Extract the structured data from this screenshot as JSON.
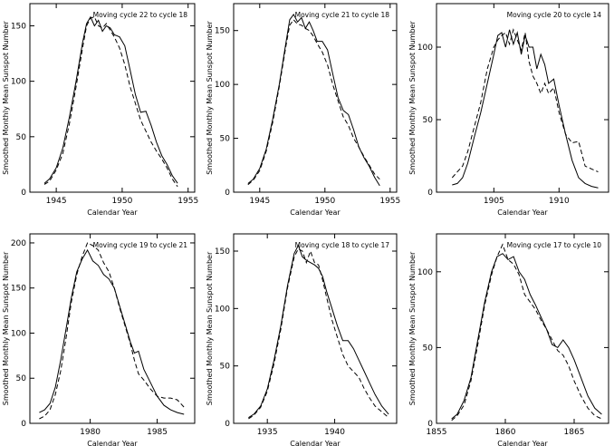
{
  "chart_data": [
    {
      "type": "line",
      "annotation": "Moving cycle 22 to cycle 18",
      "xlabel": "Calendar Year",
      "ylabel": "Smoothed Monthly Mean Sunspot Number",
      "xlim": [
        1943.0,
        1955.5
      ],
      "ylim": [
        0,
        170
      ],
      "xticks": [
        1945,
        1950,
        1955
      ],
      "yticks": [
        0,
        50,
        100,
        150
      ],
      "series": [
        {
          "style": "solid",
          "x": [
            1944.1,
            1944.5,
            1945,
            1945.5,
            1946,
            1946.5,
            1947,
            1947.3,
            1947.6,
            1947.9,
            1948.2,
            1948.5,
            1948.8,
            1949.1,
            1949.4,
            1949.8,
            1950.2,
            1950.6,
            1951,
            1951.4,
            1951.8,
            1952.2,
            1952.6,
            1953,
            1953.4,
            1953.8,
            1954.2
          ],
          "y": [
            8,
            12,
            22,
            40,
            68,
            100,
            135,
            152,
            158,
            150,
            155,
            145,
            150,
            148,
            142,
            140,
            132,
            110,
            88,
            72,
            73,
            60,
            45,
            33,
            25,
            15,
            8
          ]
        },
        {
          "style": "dashed",
          "x": [
            1944.1,
            1944.5,
            1945,
            1945.5,
            1946,
            1946.5,
            1947,
            1947.3,
            1947.6,
            1947.9,
            1948.2,
            1948.5,
            1948.8,
            1949.1,
            1949.4,
            1949.8,
            1950.2,
            1950.6,
            1951,
            1951.4,
            1951.8,
            1952.2,
            1952.6,
            1953,
            1953.4,
            1953.8,
            1954.2
          ],
          "y": [
            7,
            10,
            20,
            35,
            62,
            95,
            130,
            150,
            157,
            158,
            150,
            148,
            152,
            146,
            140,
            130,
            115,
            95,
            80,
            65,
            55,
            45,
            37,
            30,
            22,
            12,
            5
          ]
        }
      ]
    },
    {
      "type": "line",
      "annotation": "Moving cycle 21 to cycle 18",
      "xlabel": "Calendar Year",
      "ylabel": "Smoothed Monthly Mean Sunspot Number",
      "xlim": [
        1943.0,
        1955.5
      ],
      "ylim": [
        0,
        175
      ],
      "xticks": [
        1945,
        1950,
        1955
      ],
      "yticks": [
        0,
        50,
        100,
        150
      ],
      "series": [
        {
          "style": "solid",
          "x": [
            1944.1,
            1944.5,
            1945,
            1945.5,
            1946,
            1946.5,
            1947,
            1947.3,
            1947.6,
            1947.9,
            1948.2,
            1948.5,
            1948.8,
            1949.1,
            1949.4,
            1949.8,
            1950.2,
            1950.6,
            1951,
            1951.4,
            1951.8,
            1952.2,
            1952.6,
            1953,
            1953.4,
            1953.8,
            1954.2
          ],
          "y": [
            8,
            12,
            22,
            40,
            68,
            100,
            138,
            160,
            165,
            158,
            162,
            152,
            158,
            150,
            140,
            140,
            132,
            110,
            88,
            76,
            72,
            58,
            42,
            32,
            24,
            14,
            6
          ]
        },
        {
          "style": "dashed",
          "x": [
            1944.1,
            1944.5,
            1945,
            1945.5,
            1946,
            1946.5,
            1947,
            1947.3,
            1947.6,
            1947.9,
            1948.2,
            1948.5,
            1948.8,
            1949.1,
            1949.4,
            1949.8,
            1950.2,
            1950.6,
            1951,
            1951.4,
            1951.8,
            1952.2,
            1952.6,
            1953,
            1953.4,
            1953.8,
            1954.2
          ],
          "y": [
            7,
            11,
            20,
            38,
            65,
            98,
            135,
            155,
            160,
            156,
            155,
            152,
            150,
            145,
            138,
            130,
            118,
            100,
            85,
            70,
            62,
            50,
            42,
            33,
            25,
            17,
            12
          ]
        }
      ]
    },
    {
      "type": "line",
      "annotation": "Moving cycle 20 to cycle 14",
      "xlabel": "Calendar Year",
      "ylabel": "Smoothed Monthly Mean Sunspot Number",
      "xlim": [
        1900.6,
        1913.8
      ],
      "ylim": [
        0,
        130
      ],
      "xticks": [
        1905,
        1910
      ],
      "yticks": [
        0,
        50,
        100
      ],
      "series": [
        {
          "style": "solid",
          "x": [
            1901.8,
            1902.2,
            1902.6,
            1903,
            1903.5,
            1904,
            1904.5,
            1905,
            1905.3,
            1905.6,
            1905.9,
            1906.2,
            1906.5,
            1906.8,
            1907.1,
            1907.4,
            1907.7,
            1908,
            1908.3,
            1908.6,
            1908.9,
            1909.2,
            1909.6,
            1910,
            1910.5,
            1911,
            1911.5,
            1912,
            1912.5,
            1913
          ],
          "y": [
            5,
            6,
            10,
            20,
            38,
            55,
            75,
            95,
            108,
            110,
            100,
            112,
            102,
            110,
            95,
            108,
            100,
            100,
            85,
            95,
            88,
            75,
            78,
            60,
            40,
            22,
            10,
            6,
            4,
            3
          ]
        },
        {
          "style": "dashed",
          "x": [
            1901.8,
            1902.2,
            1902.6,
            1903,
            1903.5,
            1904,
            1904.5,
            1905,
            1905.3,
            1905.6,
            1905.9,
            1906.2,
            1906.5,
            1906.8,
            1907.1,
            1907.4,
            1907.7,
            1908,
            1908.3,
            1908.6,
            1908.9,
            1909.2,
            1909.6,
            1910,
            1910.5,
            1911,
            1911.5,
            1912,
            1912.5,
            1913
          ],
          "y": [
            10,
            14,
            18,
            28,
            45,
            62,
            85,
            100,
            105,
            108,
            110,
            102,
            112,
            105,
            98,
            110,
            90,
            80,
            75,
            68,
            75,
            68,
            72,
            55,
            40,
            34,
            35,
            18,
            16,
            14
          ]
        }
      ]
    },
    {
      "type": "line",
      "annotation": "Moving cycle 19 to cycle 21",
      "xlabel": "Calendar Year",
      "ylabel": "Smoothed Monthly Mean Sunspot Number",
      "xlim": [
        1975.5,
        1987.8
      ],
      "ylim": [
        0,
        210
      ],
      "xticks": [
        1980,
        1985
      ],
      "yticks": [
        0,
        50,
        100,
        150,
        200
      ],
      "series": [
        {
          "style": "solid",
          "x": [
            1976.2,
            1976.6,
            1977,
            1977.4,
            1977.8,
            1978.2,
            1978.6,
            1979,
            1979.4,
            1979.8,
            1980.2,
            1980.6,
            1981,
            1981.4,
            1981.8,
            1982.2,
            1982.6,
            1983,
            1983.3,
            1983.6,
            1984,
            1984.5,
            1985,
            1985.5,
            1986,
            1986.5,
            1987
          ],
          "y": [
            12,
            15,
            22,
            40,
            70,
            105,
            140,
            168,
            182,
            192,
            180,
            175,
            165,
            160,
            150,
            130,
            110,
            90,
            78,
            80,
            60,
            45,
            30,
            20,
            15,
            12,
            10
          ]
        },
        {
          "style": "dashed",
          "x": [
            1976.2,
            1976.6,
            1977,
            1977.4,
            1977.8,
            1978.2,
            1978.6,
            1979,
            1979.4,
            1979.8,
            1980.2,
            1980.6,
            1981,
            1981.4,
            1981.8,
            1982.2,
            1982.6,
            1983,
            1983.3,
            1983.6,
            1984,
            1984.5,
            1985,
            1985.5,
            1986,
            1986.5,
            1987
          ],
          "y": [
            5,
            8,
            15,
            32,
            58,
            95,
            135,
            165,
            185,
            200,
            197,
            192,
            178,
            168,
            150,
            128,
            108,
            88,
            70,
            55,
            48,
            38,
            30,
            28,
            28,
            26,
            18
          ]
        }
      ]
    },
    {
      "type": "line",
      "annotation": "Moving cycle 18 to cycle 17",
      "xlabel": "Calendar Year",
      "ylabel": "Smoothed Monthly Mean Sunspot Number",
      "xlim": [
        1932.5,
        1944.6
      ],
      "ylim": [
        0,
        165
      ],
      "xticks": [
        1935,
        1940
      ],
      "yticks": [
        0,
        50,
        100,
        150
      ],
      "series": [
        {
          "style": "solid",
          "x": [
            1933.6,
            1934,
            1934.5,
            1935,
            1935.5,
            1936,
            1936.5,
            1937,
            1937.3,
            1937.6,
            1937.9,
            1938.2,
            1938.5,
            1938.8,
            1939.1,
            1939.4,
            1939.8,
            1940.2,
            1940.6,
            1941,
            1941.4,
            1941.8,
            1942.2,
            1942.6,
            1943,
            1943.5,
            1944
          ],
          "y": [
            5,
            8,
            15,
            30,
            55,
            85,
            120,
            148,
            155,
            145,
            142,
            140,
            138,
            135,
            128,
            115,
            100,
            85,
            72,
            72,
            65,
            55,
            45,
            35,
            25,
            15,
            8
          ]
        },
        {
          "style": "dashed",
          "x": [
            1933.6,
            1934,
            1934.5,
            1935,
            1935.5,
            1936,
            1936.5,
            1937,
            1937.3,
            1937.6,
            1937.9,
            1938.2,
            1938.5,
            1938.8,
            1939.1,
            1939.4,
            1939.8,
            1940.2,
            1940.6,
            1941,
            1941.4,
            1941.8,
            1942.2,
            1942.6,
            1943,
            1943.5,
            1944
          ],
          "y": [
            4,
            7,
            14,
            28,
            52,
            82,
            118,
            145,
            152,
            150,
            140,
            150,
            140,
            138,
            125,
            110,
            90,
            75,
            60,
            50,
            45,
            40,
            30,
            22,
            15,
            10,
            5
          ]
        }
      ]
    },
    {
      "type": "line",
      "annotation": "Moving cycle 17 to cycle 10",
      "xlabel": "Calendar Year",
      "ylabel": "Smoothed Monthly Mean Sunspot Number",
      "xlim": [
        1855.0,
        1867.5
      ],
      "ylim": [
        0,
        125
      ],
      "xticks": [
        1855,
        1860,
        1865
      ],
      "yticks": [
        0,
        50,
        100
      ],
      "series": [
        {
          "style": "solid",
          "x": [
            1856.1,
            1856.5,
            1857,
            1857.5,
            1858,
            1858.5,
            1859,
            1859.4,
            1859.8,
            1860.2,
            1860.6,
            1861,
            1861.4,
            1861.8,
            1862.2,
            1862.6,
            1863,
            1863.4,
            1863.8,
            1864.2,
            1864.6,
            1865,
            1865.5,
            1866,
            1866.5,
            1867
          ],
          "y": [
            3,
            6,
            15,
            30,
            55,
            80,
            100,
            110,
            112,
            108,
            110,
            100,
            95,
            85,
            78,
            70,
            62,
            52,
            50,
            55,
            50,
            42,
            30,
            18,
            10,
            6
          ]
        },
        {
          "style": "dashed",
          "x": [
            1856.1,
            1856.5,
            1857,
            1857.5,
            1858,
            1858.5,
            1859,
            1859.4,
            1859.8,
            1860.2,
            1860.6,
            1861,
            1861.4,
            1861.8,
            1862.2,
            1862.6,
            1863,
            1863.4,
            1863.8,
            1864.2,
            1864.6,
            1865,
            1865.5,
            1866,
            1866.5,
            1867
          ],
          "y": [
            2,
            5,
            12,
            28,
            52,
            78,
            98,
            110,
            118,
            108,
            105,
            98,
            85,
            80,
            75,
            68,
            62,
            55,
            48,
            45,
            38,
            28,
            18,
            10,
            5,
            3
          ]
        }
      ]
    }
  ]
}
